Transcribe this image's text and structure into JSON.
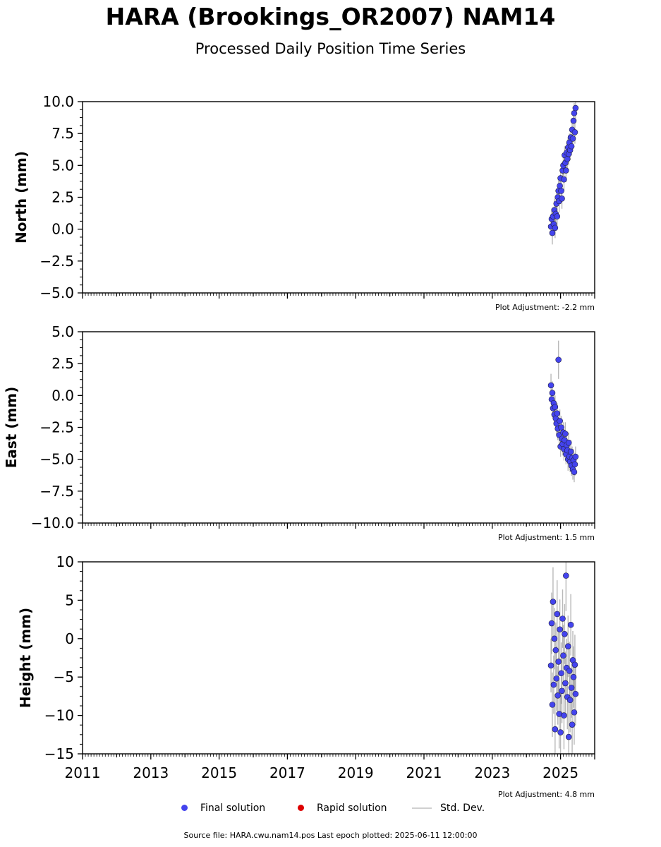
{
  "title": "HARA (Brookings_OR2007) NAM14",
  "subtitle": "Processed Daily Position Time Series",
  "footer": "Source file: HARA.cwu.nam14.pos  Last epoch plotted: 2025-06-11 12:00:00",
  "legend": {
    "final": "Final solution",
    "rapid": "Rapid solution",
    "std": "Std. Dev."
  },
  "colors": {
    "final": "#4444ee",
    "rapid": "#dd0000",
    "std": "#b0b0b0"
  },
  "chart_data": [
    {
      "type": "scatter",
      "ylabel": "North (mm)",
      "adjustment": "Plot Adjustment: -2.2 mm",
      "xlim": [
        2011,
        2026
      ],
      "ylim": [
        -5,
        10
      ],
      "yticks": [
        "−5.0",
        "−2.5",
        "0.0",
        "2.5",
        "5.0",
        "7.5",
        "10.0"
      ],
      "ytick_values": [
        -5,
        -2.5,
        0,
        2.5,
        5,
        7.5,
        10
      ],
      "x": [
        2024.72,
        2024.74,
        2024.76,
        2024.78,
        2024.8,
        2024.82,
        2024.84,
        2024.86,
        2024.88,
        2024.9,
        2024.92,
        2024.94,
        2024.96,
        2024.98,
        2025.0,
        2025.02,
        2025.04,
        2025.06,
        2025.08,
        2025.1,
        2025.12,
        2025.14,
        2025.16,
        2025.18,
        2025.2,
        2025.22,
        2025.24,
        2025.26,
        2025.28,
        2025.3,
        2025.32,
        2025.34,
        2025.36,
        2025.38,
        2025.4,
        2025.42,
        2025.44
      ],
      "y": [
        0.2,
        0.8,
        -0.3,
        1.0,
        0.4,
        1.5,
        0.1,
        1.2,
        2.0,
        1.0,
        2.5,
        3.0,
        2.2,
        3.4,
        4.0,
        3.0,
        2.4,
        4.6,
        5.0,
        3.9,
        5.8,
        5.2,
        4.6,
        6.0,
        5.5,
        6.4,
        5.9,
        6.8,
        6.2,
        7.2,
        6.5,
        7.8,
        7.1,
        8.5,
        9.1,
        7.6,
        9.5
      ],
      "err": [
        0.7,
        0.8,
        0.9,
        0.7,
        0.8,
        0.9,
        0.8,
        0.7,
        0.8,
        0.9,
        0.7,
        0.8,
        0.9,
        0.8,
        0.7,
        0.9,
        0.8,
        0.7,
        0.8,
        0.9,
        0.7,
        0.8,
        0.9,
        0.8,
        0.7,
        0.8,
        0.9,
        0.7,
        0.8,
        0.8,
        0.7,
        0.9,
        0.8,
        0.7,
        0.8,
        0.9,
        0.8
      ]
    },
    {
      "type": "scatter",
      "ylabel": "East (mm)",
      "adjustment": "Plot Adjustment: 1.5 mm",
      "xlim": [
        2011,
        2026
      ],
      "ylim": [
        -10,
        5
      ],
      "yticks": [
        "−10.0",
        "−7.5",
        "−5.0",
        "−2.5",
        "0.0",
        "2.5",
        "5.0"
      ],
      "ytick_values": [
        -10,
        -7.5,
        -5,
        -2.5,
        0,
        2.5,
        5
      ],
      "x": [
        2024.72,
        2024.74,
        2024.76,
        2024.78,
        2024.8,
        2024.82,
        2024.84,
        2024.86,
        2024.88,
        2024.9,
        2024.92,
        2024.94,
        2024.96,
        2024.98,
        2025.0,
        2025.02,
        2025.04,
        2025.06,
        2025.08,
        2025.1,
        2025.12,
        2025.14,
        2025.16,
        2025.18,
        2025.2,
        2025.22,
        2025.24,
        2025.26,
        2025.28,
        2025.3,
        2025.32,
        2025.34,
        2025.36,
        2025.38,
        2025.4,
        2025.42,
        2025.44
      ],
      "y": [
        0.8,
        -0.3,
        0.2,
        -1.0,
        -0.6,
        -1.5,
        -0.9,
        -1.8,
        -2.2,
        -1.4,
        -2.6,
        2.8,
        -3.1,
        -2.0,
        -4.0,
        -2.5,
        -3.4,
        -3.8,
        -2.9,
        -4.2,
        -3.5,
        -3.0,
        -4.6,
        -3.9,
        -4.3,
        -5.0,
        -3.7,
        -4.8,
        -5.2,
        -4.4,
        -5.5,
        -4.9,
        -5.8,
        -5.1,
        -6.0,
        -5.4,
        -4.8
      ],
      "err": [
        0.9,
        0.8,
        0.9,
        0.8,
        0.9,
        0.8,
        0.9,
        0.8,
        0.9,
        0.8,
        0.9,
        1.5,
        0.8,
        0.9,
        0.8,
        0.9,
        0.8,
        0.9,
        0.8,
        0.9,
        0.8,
        0.9,
        0.8,
        0.9,
        0.8,
        0.9,
        0.8,
        0.9,
        0.8,
        0.9,
        0.8,
        0.9,
        0.8,
        0.9,
        0.8,
        0.9,
        0.8
      ]
    },
    {
      "type": "scatter",
      "ylabel": "Height (mm)",
      "adjustment": "Plot Adjustment: 4.8 mm",
      "xlim": [
        2011,
        2026
      ],
      "ylim": [
        -15,
        10
      ],
      "yticks": [
        "−15",
        "−10",
        "−5",
        "0",
        "5",
        "10"
      ],
      "ytick_values": [
        -15,
        -10,
        -5,
        0,
        5,
        10
      ],
      "xticks": [
        "2011",
        "2013",
        "2015",
        "2017",
        "2019",
        "2021",
        "2023",
        "2025"
      ],
      "xtick_values": [
        2011,
        2013,
        2015,
        2017,
        2019,
        2021,
        2023,
        2025
      ],
      "x": [
        2024.72,
        2024.74,
        2024.76,
        2024.78,
        2024.8,
        2024.82,
        2024.84,
        2024.86,
        2024.88,
        2024.9,
        2024.92,
        2024.94,
        2024.96,
        2024.98,
        2025.0,
        2025.02,
        2025.04,
        2025.06,
        2025.08,
        2025.1,
        2025.12,
        2025.14,
        2025.16,
        2025.18,
        2025.2,
        2025.22,
        2025.24,
        2025.26,
        2025.28,
        2025.3,
        2025.32,
        2025.34,
        2025.36,
        2025.38,
        2025.4,
        2025.42,
        2025.44
      ],
      "y": [
        -3.5,
        2.0,
        -8.6,
        4.8,
        -6.0,
        0.0,
        -11.8,
        -1.5,
        -5.2,
        3.2,
        -7.4,
        -3.0,
        -9.8,
        1.2,
        -12.2,
        -4.5,
        -6.8,
        2.6,
        -2.2,
        -10.0,
        0.6,
        -5.8,
        8.2,
        -3.8,
        -7.6,
        -1.0,
        -12.8,
        -4.2,
        -8.0,
        1.8,
        -6.4,
        -11.2,
        -2.8,
        -5.0,
        -9.6,
        -3.4,
        -7.2
      ],
      "err": [
        3.5,
        4.0,
        4.2,
        4.5,
        3.8,
        4.0,
        4.6,
        3.6,
        4.2,
        4.4,
        3.8,
        4.0,
        4.5,
        3.9,
        4.8,
        4.0,
        4.2,
        3.8,
        4.0,
        4.4,
        3.9,
        4.1,
        4.6,
        3.8,
        4.2,
        4.0,
        4.5,
        3.8,
        4.2,
        4.0,
        3.9,
        4.4,
        3.8,
        4.0,
        4.2,
        3.9,
        4.1
      ]
    }
  ]
}
